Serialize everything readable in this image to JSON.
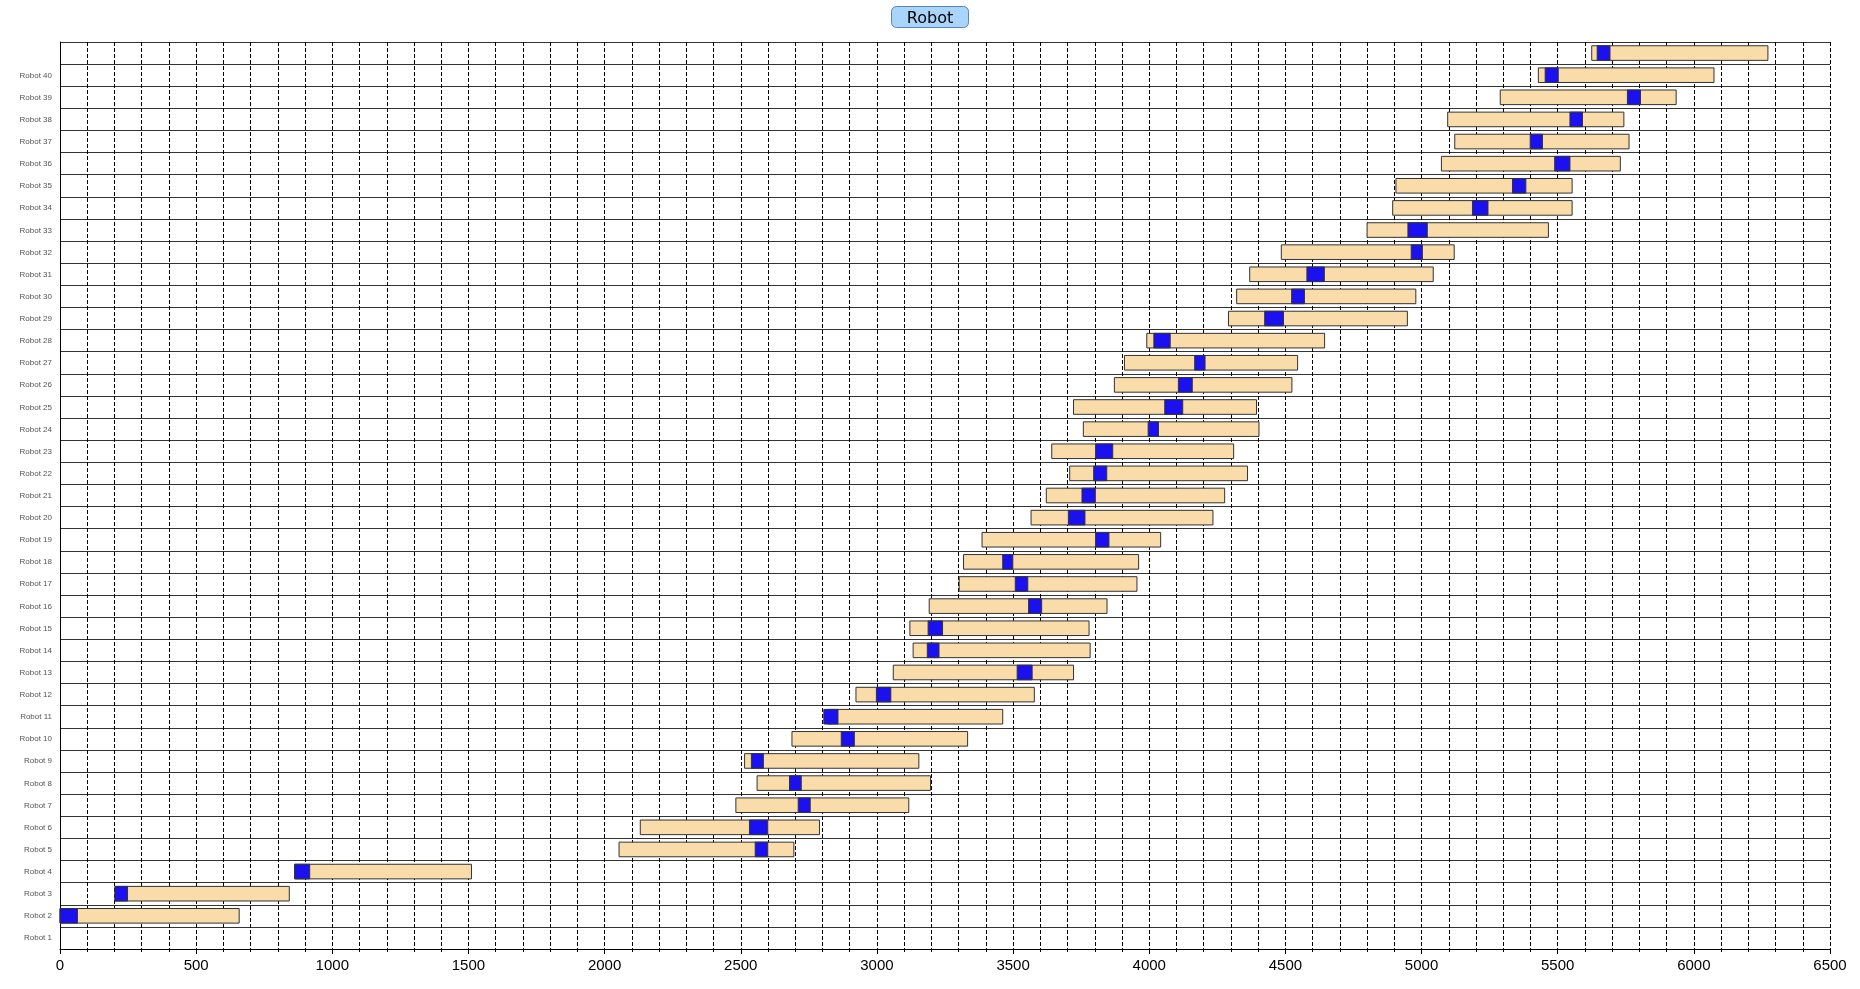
{
  "chart_data": {
    "type": "bar",
    "orientation": "horizontal",
    "title": "Robot",
    "categories": [
      null,
      "Robot 40",
      "Robot 39",
      "Robot 38",
      "Robot 37",
      "Robot 36",
      "Robot 35",
      "Robot 34",
      "Robot 33",
      "Robot 32",
      "Robot 31",
      "Robot 30",
      "Robot 29",
      "Robot 28",
      "Robot 27",
      "Robot 26",
      "Robot 25",
      "Robot 24",
      "Robot 23",
      "Robot 22",
      "Robot 21",
      "Robot 20",
      "Robot 19",
      "Robot 18",
      "Robot 17",
      "Robot 16",
      "Robot 15",
      "Robot 14",
      "Robot 13",
      "Robot 12",
      "Robot 11",
      "Robot 10",
      "Robot 9",
      "Robot 8",
      "Robot 7",
      "Robot 6",
      "Robot 5",
      "Robot 4",
      "Robot 3",
      "Robot 2",
      "Robot 1"
    ],
    "series": [
      {
        "color": "#f9dcaa",
        "base": [
          5625,
          5429,
          5289,
          5096,
          5122,
          5073,
          4906,
          4894,
          4800,
          4485,
          4369,
          4321,
          4291,
          3991,
          3909,
          3872,
          3722,
          3758,
          3642,
          3708,
          3622,
          3566,
          3386,
          3318,
          3302,
          3192,
          3121,
          3133,
          3060,
          2923,
          2818,
          2688,
          2514,
          2560,
          2482,
          2131,
          2053,
          862,
          202,
          0,
          null
        ],
        "values": [
          647,
          645,
          646,
          647,
          640,
          657,
          647,
          659,
          666,
          635,
          674,
          658,
          657,
          653,
          636,
          652,
          672,
          645,
          668,
          653,
          655,
          668,
          656,
          643,
          653,
          653,
          658,
          650,
          662,
          655,
          644,
          645,
          640,
          637,
          635,
          658,
          642,
          649,
          640,
          658,
          null
        ]
      },
      {
        "color": "#1a10f0",
        "base": [
          5645,
          5454,
          5756,
          5545,
          5399,
          5489,
          5334,
          5187,
          4950,
          4962,
          4579,
          4523,
          4424,
          4017,
          4167,
          4107,
          4057,
          3996,
          3803,
          3796,
          3753,
          3703,
          3803,
          3462,
          3508,
          3557,
          3188,
          3185,
          3515,
          2998,
          2805,
          2869,
          2539,
          2679,
          2711,
          2532,
          2553,
          862,
          202,
          0,
          null
        ],
        "values": [
          47,
          48,
          48,
          46,
          45,
          56,
          49,
          57,
          71,
          41,
          64,
          47,
          69,
          60,
          38,
          51,
          66,
          38,
          63,
          48,
          49,
          61,
          49,
          37,
          46,
          48,
          53,
          43,
          55,
          53,
          52,
          48,
          44,
          43,
          44,
          67,
          46,
          55,
          46,
          64,
          null
        ]
      }
    ],
    "xlim": [
      0,
      6500
    ],
    "xticks": [
      0,
      500,
      1000,
      1500,
      2000,
      2500,
      3000,
      3500,
      4000,
      4500,
      5000,
      5500,
      6000,
      6500
    ],
    "grid": true
  }
}
